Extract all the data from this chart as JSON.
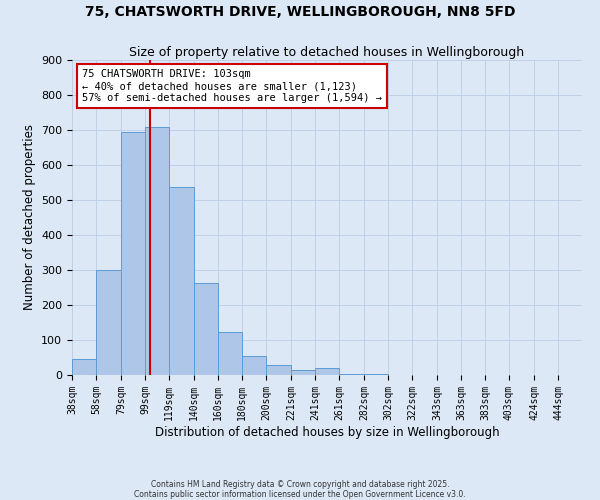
{
  "title": "75, CHATSWORTH DRIVE, WELLINGBOROUGH, NN8 5FD",
  "subtitle": "Size of property relative to detached houses in Wellingborough",
  "xlabel": "Distribution of detached houses by size in Wellingborough",
  "ylabel": "Number of detached properties",
  "bin_labels": [
    "38sqm",
    "58sqm",
    "79sqm",
    "99sqm",
    "119sqm",
    "140sqm",
    "160sqm",
    "180sqm",
    "200sqm",
    "221sqm",
    "241sqm",
    "261sqm",
    "282sqm",
    "302sqm",
    "322sqm",
    "343sqm",
    "363sqm",
    "383sqm",
    "403sqm",
    "424sqm",
    "444sqm"
  ],
  "bin_edges": [
    38,
    58,
    79,
    99,
    119,
    140,
    160,
    180,
    200,
    221,
    241,
    261,
    282,
    302,
    322,
    343,
    363,
    383,
    403,
    424,
    444
  ],
  "bar_heights": [
    47,
    300,
    693,
    710,
    537,
    263,
    123,
    55,
    29,
    15,
    20,
    3,
    2,
    1,
    1,
    1,
    0,
    0,
    0,
    0,
    0
  ],
  "bar_color": "#aec6e8",
  "bar_edge_color": "#5b9bd5",
  "vline_x": 103,
  "vline_color": "#cc0000",
  "annotation_text": "75 CHATSWORTH DRIVE: 103sqm\n← 40% of detached houses are smaller (1,123)\n57% of semi-detached houses are larger (1,594) →",
  "annotation_box_color": "#ffffff",
  "annotation_box_edge_color": "#cc0000",
  "ylim": [
    0,
    900
  ],
  "yticks": [
    0,
    100,
    200,
    300,
    400,
    500,
    600,
    700,
    800,
    900
  ],
  "grid_color": "#c0d0e8",
  "background_color": "#dce8f5",
  "plot_bg_color": "#dce8f5",
  "footnote": "Contains HM Land Registry data © Crown copyright and database right 2025.\nContains public sector information licensed under the Open Government Licence v3.0.",
  "title_fontsize": 10,
  "subtitle_fontsize": 9,
  "axis_label_fontsize": 8.5,
  "tick_label_fontsize": 7,
  "annotation_fontsize": 7.5
}
